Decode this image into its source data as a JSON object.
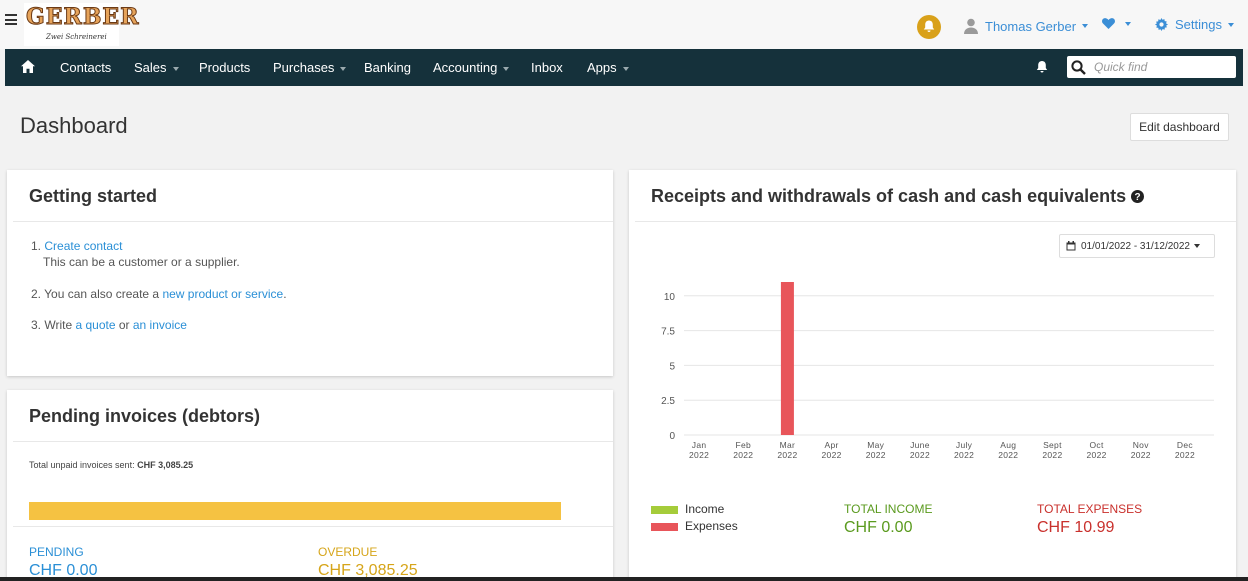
{
  "brand": {
    "logo_word": "GERBER",
    "logo_tagline": "Zwei Schreinerei"
  },
  "header": {
    "user_name": "Thomas Gerber",
    "settings_label": "Settings"
  },
  "nav": {
    "items": [
      {
        "label": "Contacts",
        "dropdown": false
      },
      {
        "label": "Sales",
        "dropdown": true
      },
      {
        "label": "Products",
        "dropdown": false
      },
      {
        "label": "Purchases",
        "dropdown": true
      },
      {
        "label": "Banking",
        "dropdown": false
      },
      {
        "label": "Accounting",
        "dropdown": true
      },
      {
        "label": "Inbox",
        "dropdown": false
      },
      {
        "label": "Apps",
        "dropdown": true
      }
    ],
    "quick_find_placeholder": "Quick find"
  },
  "page": {
    "title": "Dashboard",
    "edit_label": "Edit dashboard"
  },
  "getting_started": {
    "title": "Getting started",
    "step1_num": "1.",
    "step1_link": "Create contact",
    "step1_note": "This can be a customer or a supplier.",
    "step2_prefix": "2. You can also create a",
    "step2_link": "new product or service",
    "step2_suffix": ".",
    "step3_prefix": "3. Write",
    "step3_link1": "a quote",
    "step3_mid": "or",
    "step3_link2": "an invoice"
  },
  "pending": {
    "title": "Pending invoices (debtors)",
    "total_label": "Total unpaid invoices sent:",
    "total_value": "CHF 3,085.25",
    "overdue_fraction": 1.0,
    "pending_label": "PENDING",
    "pending_value": "CHF 0.00",
    "overdue_label": "OVERDUE",
    "overdue_value": "CHF 3,085.25"
  },
  "cash": {
    "title": "Receipts and withdrawals of cash and cash equivalents",
    "date_range": "01/01/2022 - 31/12/2022",
    "legend_income": "Income",
    "legend_expenses": "Expenses",
    "total_income_label": "TOTAL INCOME",
    "total_income_value": "CHF 0.00",
    "total_expenses_label": "TOTAL EXPENSES",
    "total_expenses_value": "CHF 10.99"
  },
  "chart_data": {
    "type": "bar",
    "categories": [
      {
        "month": "Jan",
        "year": "2022"
      },
      {
        "month": "Feb",
        "year": "2022"
      },
      {
        "month": "Mar",
        "year": "2022"
      },
      {
        "month": "Apr",
        "year": "2022"
      },
      {
        "month": "May",
        "year": "2022"
      },
      {
        "month": "June",
        "year": "2022"
      },
      {
        "month": "July",
        "year": "2022"
      },
      {
        "month": "Aug",
        "year": "2022"
      },
      {
        "month": "Sept",
        "year": "2022"
      },
      {
        "month": "Oct",
        "year": "2022"
      },
      {
        "month": "Nov",
        "year": "2022"
      },
      {
        "month": "Dec",
        "year": "2022"
      }
    ],
    "series": [
      {
        "name": "Income",
        "values": [
          0,
          0,
          0,
          0,
          0,
          0,
          0,
          0,
          0,
          0,
          0,
          0
        ]
      },
      {
        "name": "Expenses",
        "values": [
          0,
          0,
          10.99,
          0,
          0,
          0,
          0,
          0,
          0,
          0,
          0,
          0
        ]
      }
    ],
    "yticks": [
      "0",
      "2.5",
      "5",
      "7.5",
      "10"
    ],
    "ylim": [
      0,
      10.99
    ],
    "grid": true,
    "legend_position": "bottom-left"
  },
  "colors": {
    "navbar": "#15313b",
    "income": "#a5cc3a",
    "expenses": "#e8555a",
    "income_total": "#5a9a1e",
    "expenses_total": "#c9302c",
    "pending": "#2a8fd6",
    "overdue": "#d6a51a",
    "bar": "#f5c242"
  }
}
